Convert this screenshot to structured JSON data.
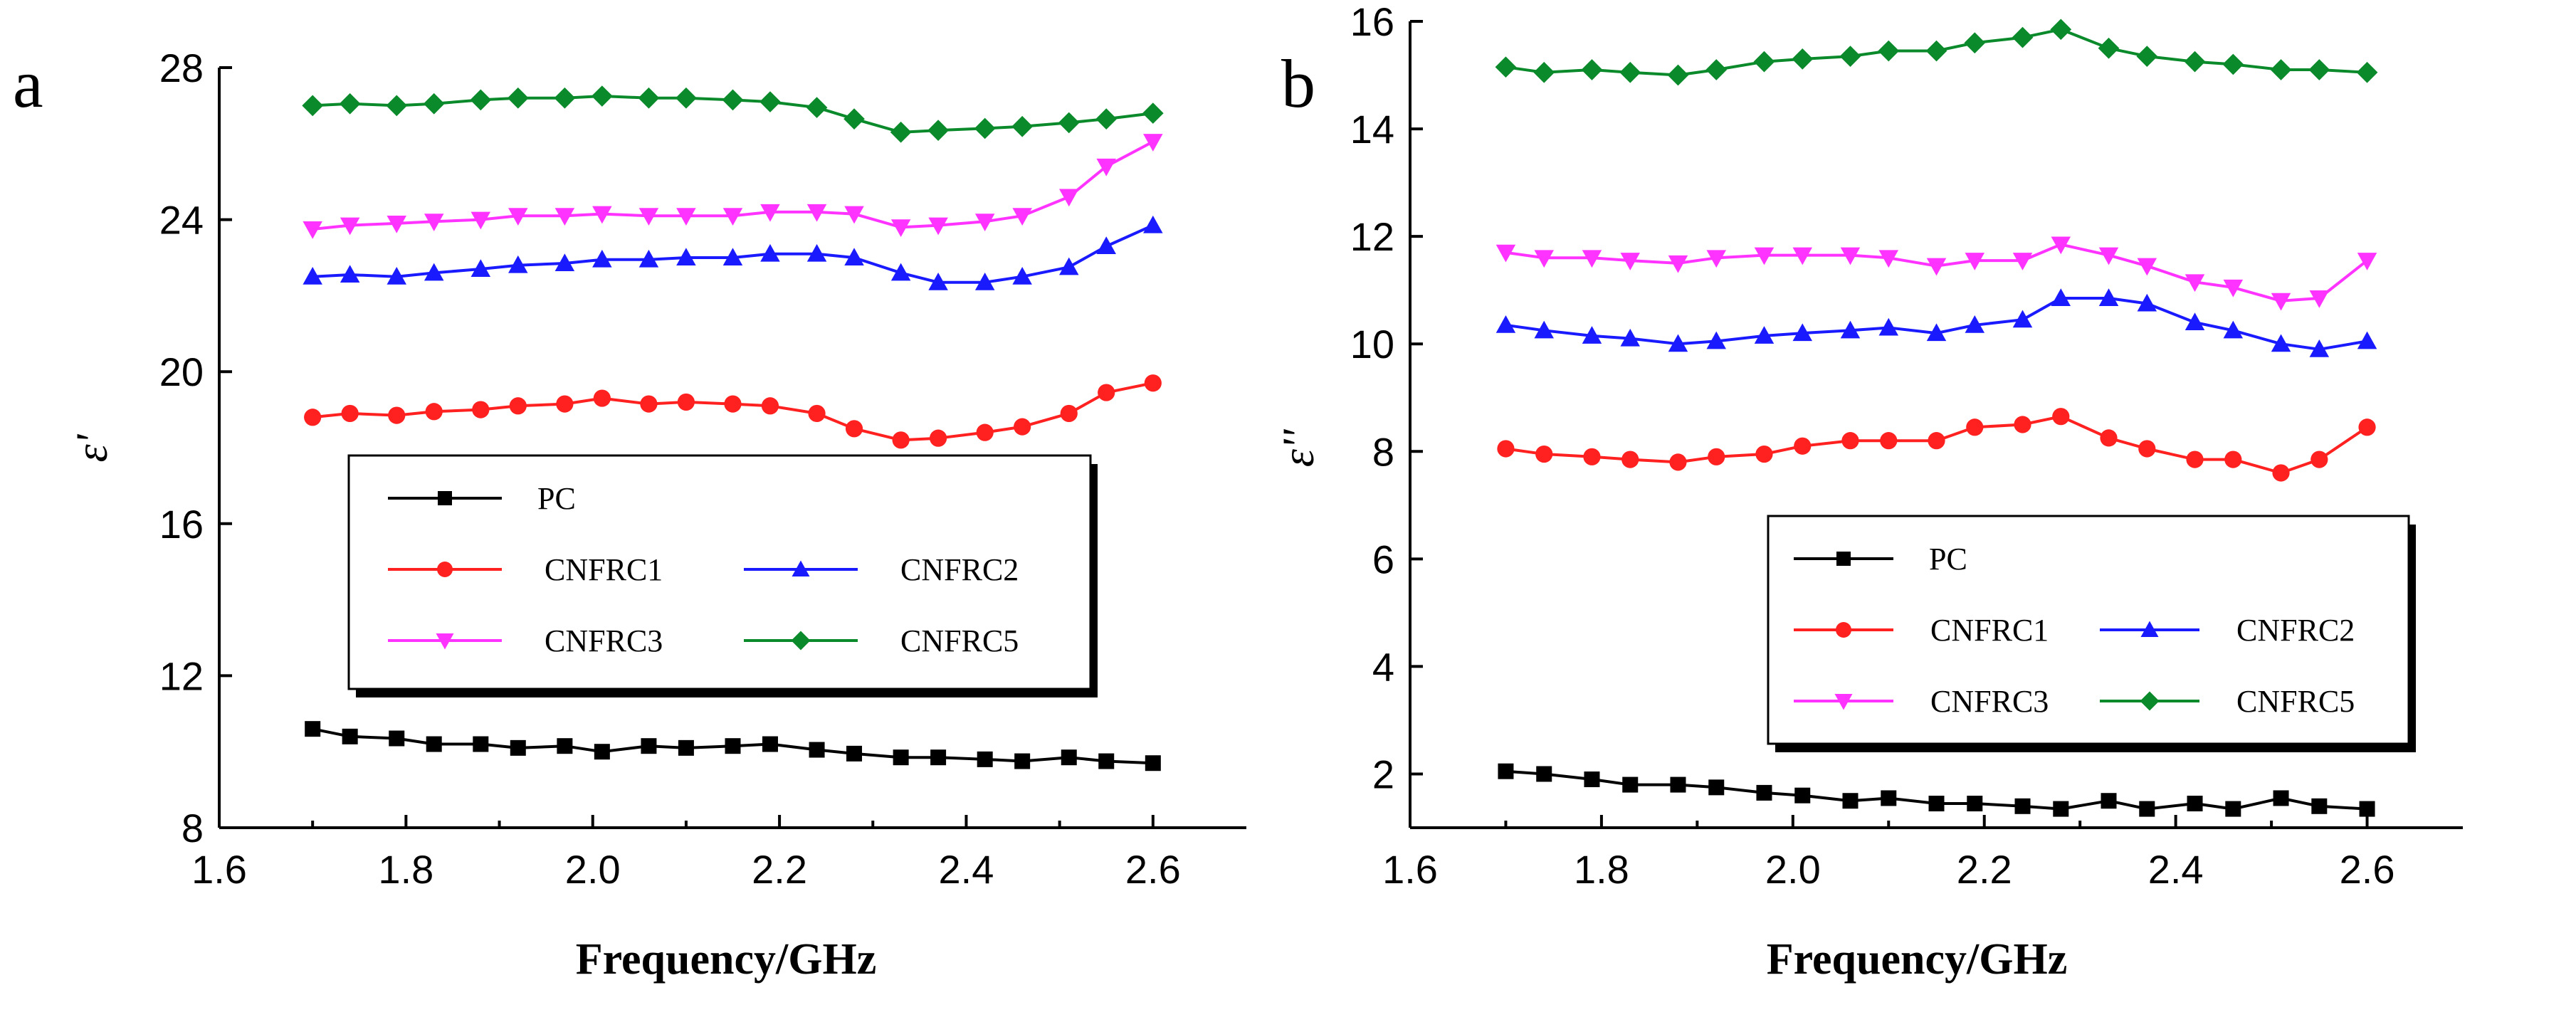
{
  "chart_data": [
    {
      "panel": "a",
      "type": "line",
      "title": "",
      "xlabel": "Frequency/GHz",
      "ylabel": "ε'",
      "xlim": [
        1.6,
        2.7
      ],
      "ylim": [
        8,
        28
      ],
      "xticks": [
        1.6,
        1.8,
        2.0,
        2.2,
        2.4,
        2.6
      ],
      "xtick_labels": [
        "1.6",
        "1.8",
        "2.0",
        "2.2",
        "2.4",
        "2.6"
      ],
      "yticks": [
        8,
        12,
        16,
        20,
        24,
        28
      ],
      "ytick_labels": [
        "8",
        "12",
        "16",
        "20",
        "24",
        "28"
      ],
      "legend_position": "center-right",
      "x": [
        1.7,
        1.74,
        1.79,
        1.83,
        1.88,
        1.92,
        1.97,
        2.01,
        2.06,
        2.1,
        2.15,
        2.19,
        2.24,
        2.28,
        2.33,
        2.37,
        2.42,
        2.46,
        2.51,
        2.55,
        2.6
      ],
      "series": [
        {
          "name": "PC",
          "color": "#000000",
          "marker": "square",
          "values": [
            10.6,
            10.4,
            10.35,
            10.2,
            10.2,
            10.1,
            10.15,
            10.0,
            10.15,
            10.1,
            10.15,
            10.2,
            10.05,
            9.95,
            9.85,
            9.85,
            9.8,
            9.75,
            9.85,
            9.75,
            9.7
          ]
        },
        {
          "name": "CNFRC1",
          "color": "#ff2020",
          "marker": "circle",
          "values": [
            18.8,
            18.9,
            18.85,
            18.95,
            19.0,
            19.1,
            19.15,
            19.3,
            19.15,
            19.2,
            19.15,
            19.1,
            18.9,
            18.5,
            18.2,
            18.25,
            18.4,
            18.55,
            18.9,
            19.45,
            19.7
          ]
        },
        {
          "name": "CNFRC2",
          "color": "#1a1aff",
          "marker": "triangle-up",
          "values": [
            22.5,
            22.55,
            22.5,
            22.6,
            22.7,
            22.8,
            22.85,
            22.95,
            22.95,
            23.0,
            23.0,
            23.1,
            23.1,
            23.0,
            22.6,
            22.35,
            22.35,
            22.5,
            22.75,
            23.3,
            23.85
          ]
        },
        {
          "name": "CNFRC3",
          "color": "#ff33ff",
          "marker": "triangle-down",
          "values": [
            23.75,
            23.85,
            23.9,
            23.95,
            24.0,
            24.1,
            24.1,
            24.15,
            24.1,
            24.1,
            24.1,
            24.2,
            24.2,
            24.15,
            23.8,
            23.85,
            23.95,
            24.1,
            24.6,
            25.4,
            26.05
          ]
        },
        {
          "name": "CNFRC5",
          "color": "#0a8a2a",
          "marker": "diamond",
          "values": [
            27.0,
            27.05,
            27.0,
            27.05,
            27.15,
            27.2,
            27.2,
            27.25,
            27.2,
            27.2,
            27.15,
            27.1,
            26.95,
            26.65,
            26.3,
            26.35,
            26.4,
            26.45,
            26.55,
            26.65,
            26.8
          ]
        }
      ]
    },
    {
      "panel": "b",
      "type": "line",
      "title": "",
      "xlabel": "Frequency/GHz",
      "ylabel": "ε''",
      "xlim": [
        1.6,
        2.7
      ],
      "ylim": [
        1,
        16
      ],
      "xticks": [
        1.6,
        1.8,
        2.0,
        2.2,
        2.4,
        2.6
      ],
      "xtick_labels": [
        "1.6",
        "1.8",
        "2.0",
        "2.2",
        "2.4",
        "2.6"
      ],
      "yticks": [
        2,
        4,
        6,
        8,
        10,
        12,
        14,
        16
      ],
      "ytick_labels": [
        "2",
        "4",
        "6",
        "8",
        "10",
        "12",
        "14",
        "16"
      ],
      "legend_position": "lower-right",
      "x": [
        1.7,
        1.74,
        1.79,
        1.83,
        1.88,
        1.92,
        1.97,
        2.01,
        2.06,
        2.1,
        2.15,
        2.19,
        2.24,
        2.28,
        2.33,
        2.37,
        2.42,
        2.46,
        2.51,
        2.55,
        2.6
      ],
      "series": [
        {
          "name": "PC",
          "color": "#000000",
          "marker": "square",
          "values": [
            2.05,
            2.0,
            1.9,
            1.8,
            1.8,
            1.75,
            1.65,
            1.6,
            1.5,
            1.55,
            1.45,
            1.45,
            1.4,
            1.35,
            1.5,
            1.35,
            1.45,
            1.35,
            1.55,
            1.4,
            1.35
          ]
        },
        {
          "name": "CNFRC1",
          "color": "#ff2020",
          "marker": "circle",
          "values": [
            8.05,
            7.95,
            7.9,
            7.85,
            7.8,
            7.9,
            7.95,
            8.1,
            8.2,
            8.2,
            8.2,
            8.45,
            8.5,
            8.65,
            8.25,
            8.05,
            7.85,
            7.85,
            7.6,
            7.85,
            8.45
          ]
        },
        {
          "name": "CNFRC2",
          "color": "#1a1aff",
          "marker": "triangle-up",
          "values": [
            10.35,
            10.25,
            10.15,
            10.1,
            10.0,
            10.05,
            10.15,
            10.2,
            10.25,
            10.3,
            10.2,
            10.35,
            10.45,
            10.85,
            10.85,
            10.75,
            10.4,
            10.25,
            10.0,
            9.9,
            10.05
          ]
        },
        {
          "name": "CNFRC3",
          "color": "#ff33ff",
          "marker": "triangle-down",
          "values": [
            11.7,
            11.6,
            11.6,
            11.55,
            11.5,
            11.6,
            11.65,
            11.65,
            11.65,
            11.6,
            11.45,
            11.55,
            11.55,
            11.85,
            11.65,
            11.45,
            11.15,
            11.05,
            10.8,
            10.85,
            11.55
          ]
        },
        {
          "name": "CNFRC5",
          "color": "#0a8a2a",
          "marker": "diamond",
          "values": [
            15.15,
            15.05,
            15.1,
            15.05,
            15.0,
            15.1,
            15.25,
            15.3,
            15.35,
            15.45,
            15.45,
            15.6,
            15.7,
            15.85,
            15.5,
            15.35,
            15.25,
            15.2,
            15.1,
            15.1,
            15.05
          ]
        }
      ]
    }
  ]
}
